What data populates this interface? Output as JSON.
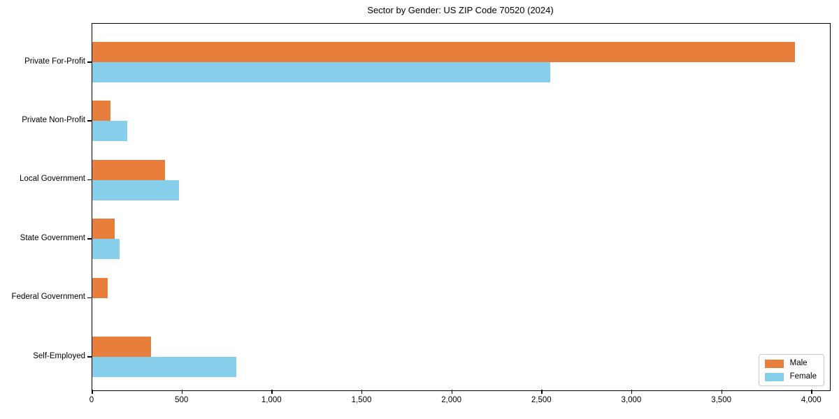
{
  "chart_data": {
    "type": "bar",
    "orientation": "horizontal",
    "title": "Sector by Gender: US ZIP Code 70520 (2024)",
    "categories": [
      "Private For-Profit",
      "Private Non-Profit",
      "Local Government",
      "State Government",
      "Federal Government",
      "Self-Employed"
    ],
    "series": [
      {
        "name": "Male",
        "color": "#E87E3C",
        "values": [
          3905,
          100,
          405,
          125,
          85,
          325
        ]
      },
      {
        "name": "Female",
        "color": "#87CEEB",
        "values": [
          2545,
          195,
          480,
          150,
          0,
          800
        ]
      }
    ],
    "xlabel": "",
    "ylabel": "",
    "xlim": [
      0,
      4100
    ],
    "xticks": {
      "values": [
        0,
        500,
        1000,
        1500,
        2000,
        2500,
        3000,
        3500,
        4000
      ],
      "labels": [
        "0",
        "500",
        "1,000",
        "1,500",
        "2,000",
        "2,500",
        "3,000",
        "3,500",
        "4,000"
      ]
    },
    "legend": {
      "position": "lower right",
      "entries": [
        "Male",
        "Female"
      ]
    },
    "grid": false,
    "colors": {
      "axis": "#000000",
      "legend_border": "#c9c9c9",
      "background": "#ffffff"
    }
  }
}
